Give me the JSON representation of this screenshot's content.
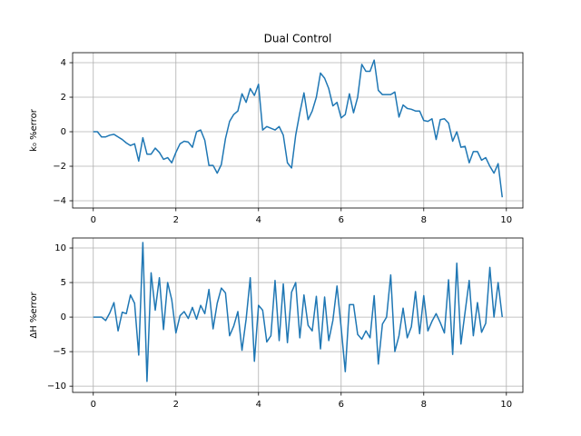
{
  "chart_data": [
    {
      "type": "line",
      "title": "Dual Control",
      "ylabel": "k₀ %error",
      "color": "#1f77b4",
      "grid": true,
      "x": [
        0,
        0.1,
        0.2,
        0.3,
        0.4,
        0.5,
        0.6,
        0.7,
        0.8,
        0.9,
        1,
        1.1,
        1.2,
        1.3,
        1.4,
        1.5,
        1.6,
        1.7,
        1.8,
        1.9,
        2,
        2.1,
        2.2,
        2.3,
        2.4,
        2.5,
        2.6,
        2.7,
        2.8,
        2.9,
        3,
        3.1,
        3.2,
        3.3,
        3.4,
        3.5,
        3.6,
        3.7,
        3.8,
        3.9,
        4,
        4.1,
        4.2,
        4.3,
        4.4,
        4.5,
        4.6,
        4.7,
        4.8,
        4.9,
        5,
        5.1,
        5.2,
        5.3,
        5.4,
        5.5,
        5.6,
        5.7,
        5.8,
        5.9,
        6,
        6.1,
        6.2,
        6.3,
        6.4,
        6.5,
        6.6,
        6.7,
        6.8,
        6.9,
        7,
        7.1,
        7.2,
        7.3,
        7.4,
        7.5,
        7.6,
        7.7,
        7.8,
        7.9,
        8,
        8.1,
        8.2,
        8.3,
        8.4,
        8.5,
        8.6,
        8.7,
        8.8,
        8.9,
        9,
        9.1,
        9.2,
        9.3,
        9.4,
        9.5,
        9.6,
        9.7,
        9.8,
        9.9
      ],
      "values": [
        0,
        0,
        -0.3,
        -0.3,
        -0.2,
        -0.15,
        -0.3,
        -0.45,
        -0.65,
        -0.8,
        -0.7,
        -1.7,
        -0.35,
        -1.3,
        -1.3,
        -0.95,
        -1.2,
        -1.6,
        -1.5,
        -1.8,
        -1.2,
        -0.7,
        -0.55,
        -0.6,
        -0.9,
        0,
        0.1,
        -0.5,
        -1.95,
        -1.95,
        -2.4,
        -1.9,
        -0.4,
        0.6,
        1,
        1.2,
        2.2,
        1.7,
        2.5,
        2.1,
        2.75,
        0.1,
        0.3,
        0.2,
        0.1,
        0.3,
        -0.2,
        -1.8,
        -2.1,
        -0.2,
        1.1,
        2.25,
        0.7,
        1.2,
        2,
        3.4,
        3.1,
        2.5,
        1.5,
        1.7,
        0.8,
        1,
        2.2,
        1.1,
        2,
        3.9,
        3.5,
        3.5,
        4.15,
        2.4,
        2.15,
        2.15,
        2.15,
        2.3,
        0.85,
        1.55,
        1.35,
        1.3,
        1.2,
        1.2,
        0.65,
        0.6,
        0.75,
        -0.45,
        0.7,
        0.75,
        0.5,
        -0.55,
        0,
        -0.9,
        -0.85,
        -1.8,
        -1.15,
        -1.15,
        -1.65,
        -1.5,
        -2,
        -2.4,
        -1.85,
        -3.8
      ],
      "xlim": [
        -0.5,
        10.4
      ],
      "xticks": [
        0,
        2,
        4,
        6,
        8,
        10
      ],
      "ylim": [
        -4.42,
        4.58
      ],
      "yticks": [
        {
          "value": -4,
          "label": "−4"
        },
        {
          "value": -2,
          "label": "−2"
        },
        0,
        2,
        4
      ]
    },
    {
      "type": "line",
      "ylabel": "ΔH %error",
      "color": "#1f77b4",
      "grid": true,
      "x": [
        0,
        0.1,
        0.2,
        0.3,
        0.4,
        0.5,
        0.6,
        0.7,
        0.8,
        0.9,
        1,
        1.1,
        1.2,
        1.3,
        1.4,
        1.5,
        1.6,
        1.7,
        1.8,
        1.9,
        2,
        2.1,
        2.2,
        2.3,
        2.4,
        2.5,
        2.6,
        2.7,
        2.8,
        2.9,
        3,
        3.1,
        3.2,
        3.3,
        3.4,
        3.5,
        3.6,
        3.7,
        3.8,
        3.9,
        4,
        4.1,
        4.2,
        4.3,
        4.4,
        4.5,
        4.6,
        4.7,
        4.8,
        4.9,
        5,
        5.1,
        5.2,
        5.3,
        5.4,
        5.5,
        5.6,
        5.7,
        5.8,
        5.9,
        6,
        6.1,
        6.2,
        6.3,
        6.4,
        6.5,
        6.6,
        6.7,
        6.8,
        6.9,
        7,
        7.1,
        7.2,
        7.3,
        7.4,
        7.5,
        7.6,
        7.7,
        7.8,
        7.9,
        8,
        8.1,
        8.2,
        8.3,
        8.4,
        8.5,
        8.6,
        8.7,
        8.8,
        8.9,
        9,
        9.1,
        9.2,
        9.3,
        9.4,
        9.5,
        9.6,
        9.7,
        9.8,
        9.9
      ],
      "values": [
        0,
        0,
        0,
        -0.5,
        0.6,
        2.1,
        -2,
        0.7,
        0.5,
        3.2,
        2,
        -5.5,
        10.8,
        -9.3,
        6.4,
        1,
        5.7,
        -1.8,
        5,
        2.5,
        -2.3,
        0.2,
        0.8,
        -0.2,
        1.4,
        -0.3,
        1.7,
        0.5,
        4,
        -1.7,
        2,
        4.2,
        3.5,
        -2.7,
        -1.3,
        0.8,
        -4.8,
        -0.3,
        5.7,
        -6.4,
        1.7,
        1,
        -3.6,
        -2.7,
        5.3,
        -3.4,
        4.8,
        -3.7,
        3.6,
        5,
        -3,
        3.2,
        -1.2,
        -2,
        3,
        -4.6,
        2.9,
        -3.4,
        -0.5,
        4.5,
        -1.5,
        -7.9,
        1.8,
        1.8,
        -2.5,
        -3.2,
        -2,
        -3,
        3.1,
        -6.8,
        -1,
        0,
        6.1,
        -5,
        -2.7,
        1.3,
        -3,
        -1.4,
        3.7,
        -2.4,
        3.1,
        -2,
        -0.6,
        0.5,
        -0.8,
        -2.3,
        5.4,
        -5.4,
        7.8,
        -3.9,
        0.7,
        5.3,
        -2.7,
        2.1,
        -2.2,
        -0.9,
        7.2,
        0,
        5,
        0
      ],
      "xlim": [
        -0.5,
        10.4
      ],
      "xticks": [
        0,
        2,
        4,
        6,
        8,
        10
      ],
      "ylim": [
        -10.9,
        11.45
      ],
      "yticks": [
        {
          "value": -10,
          "label": "−10"
        },
        {
          "value": -5,
          "label": "−5"
        },
        0,
        5,
        10
      ]
    }
  ]
}
